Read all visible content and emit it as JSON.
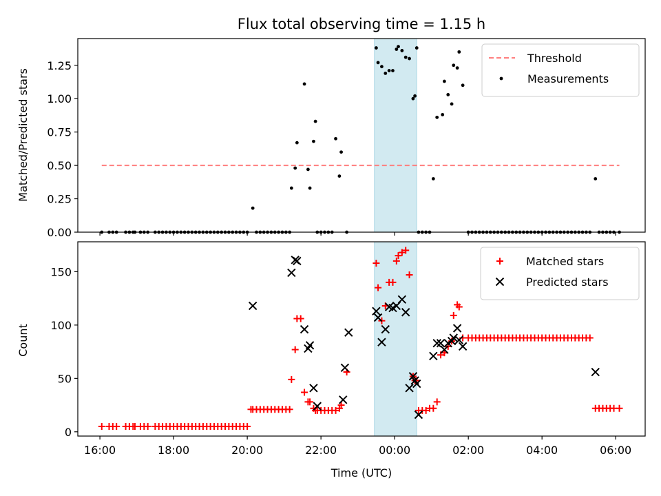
{
  "chart_data": [
    {
      "type": "scatter",
      "title": "Flux total observing time = 1.15 h",
      "xlabel": "",
      "ylabel": "Matched/Predicted stars",
      "xlim": [
        15.4,
        30.8
      ],
      "ylim": [
        0.0,
        1.45
      ],
      "y_ticks": [
        0.0,
        0.25,
        0.5,
        0.75,
        1.0,
        1.25
      ],
      "y_tick_labels": [
        "0.00",
        "0.25",
        "0.50",
        "0.75",
        "1.00",
        "1.25"
      ],
      "x_ticks": [
        16,
        18,
        20,
        22,
        24,
        26,
        28,
        30
      ],
      "shaded_span": {
        "x": [
          23.45,
          24.6
        ],
        "color": "#add8e6"
      },
      "threshold": {
        "name": "Threshold",
        "y": 0.5,
        "x": [
          16.05,
          30.1
        ],
        "color": "#ff7f7f",
        "style": "dashed"
      },
      "legend": {
        "entries": [
          "Threshold",
          "Measurements"
        ],
        "loc": "upper right"
      },
      "series": [
        {
          "name": "Measurements",
          "color": "#000000",
          "x": [
            16.05,
            16.25,
            16.35,
            16.45,
            16.7,
            16.8,
            16.9,
            16.95,
            17.1,
            17.2,
            17.3,
            17.5,
            17.6,
            17.7,
            17.8,
            17.9,
            18.0,
            18.1,
            18.2,
            18.3,
            18.4,
            18.5,
            18.6,
            18.7,
            18.8,
            18.9,
            19.0,
            19.1,
            19.2,
            19.3,
            19.4,
            19.5,
            19.6,
            19.7,
            19.8,
            19.9,
            20.0,
            20.15,
            20.25,
            20.35,
            20.45,
            20.55,
            20.65,
            20.75,
            20.85,
            20.95,
            21.05,
            21.15,
            21.2,
            21.3,
            21.35,
            21.55,
            21.65,
            21.7,
            21.8,
            21.85,
            21.9,
            22.0,
            22.1,
            22.2,
            22.3,
            22.4,
            22.5,
            22.55,
            22.7,
            23.5,
            23.55,
            23.65,
            23.75,
            23.85,
            23.95,
            24.05,
            24.1,
            24.2,
            24.3,
            24.4,
            24.5,
            24.55,
            24.6,
            24.65,
            24.75,
            24.85,
            24.95,
            25.05,
            25.15,
            25.3,
            25.35,
            25.45,
            25.55,
            25.6,
            25.7,
            25.75,
            25.85,
            26.0,
            26.1,
            26.2,
            26.3,
            26.4,
            26.5,
            26.6,
            26.7,
            26.8,
            26.9,
            27.0,
            27.1,
            27.2,
            27.3,
            27.4,
            27.5,
            27.6,
            27.7,
            27.8,
            27.9,
            28.0,
            28.1,
            28.2,
            28.3,
            28.4,
            28.5,
            28.6,
            28.7,
            28.8,
            28.9,
            29.0,
            29.1,
            29.2,
            29.3,
            29.45,
            29.55,
            29.65,
            29.75,
            29.85,
            29.95,
            30.1
          ],
          "y": [
            0.0,
            0.0,
            0.0,
            0.0,
            0.0,
            0.0,
            0.0,
            0.0,
            0.0,
            0.0,
            0.0,
            0.0,
            0.0,
            0.0,
            0.0,
            0.0,
            0.0,
            0.0,
            0.0,
            0.0,
            0.0,
            0.0,
            0.0,
            0.0,
            0.0,
            0.0,
            0.0,
            0.0,
            0.0,
            0.0,
            0.0,
            0.0,
            0.0,
            0.0,
            0.0,
            0.0,
            0.0,
            0.18,
            0.0,
            0.0,
            0.0,
            0.0,
            0.0,
            0.0,
            0.0,
            0.0,
            0.0,
            0.0,
            0.33,
            0.48,
            0.67,
            1.11,
            0.47,
            0.33,
            0.68,
            0.83,
            0.0,
            0.0,
            0.0,
            0.0,
            0.0,
            0.7,
            0.42,
            0.6,
            0.0,
            1.38,
            1.27,
            1.24,
            1.19,
            1.21,
            1.21,
            1.37,
            1.39,
            1.36,
            1.31,
            1.3,
            1.0,
            1.02,
            1.38,
            0.0,
            0.0,
            0.0,
            0.0,
            0.4,
            0.86,
            0.88,
            1.13,
            1.03,
            0.96,
            1.25,
            1.23,
            1.35,
            1.1,
            0.0,
            0.0,
            0.0,
            0.0,
            0.0,
            0.0,
            0.0,
            0.0,
            0.0,
            0.0,
            0.0,
            0.0,
            0.0,
            0.0,
            0.0,
            0.0,
            0.0,
            0.0,
            0.0,
            0.0,
            0.0,
            0.0,
            0.0,
            0.0,
            0.0,
            0.0,
            0.0,
            0.0,
            0.0,
            0.0,
            0.0,
            0.0,
            0.0,
            0.0,
            0.4,
            0.0,
            0.0,
            0.0,
            0.0,
            0.0,
            0.0
          ]
        }
      ]
    },
    {
      "type": "scatter",
      "title": "",
      "xlabel": "Time (UTC)",
      "ylabel": "Count",
      "xlim": [
        15.4,
        30.8
      ],
      "ylim": [
        -4,
        178
      ],
      "y_ticks": [
        0,
        50,
        100,
        150
      ],
      "y_tick_labels": [
        "0",
        "50",
        "100",
        "150"
      ],
      "x_ticks": [
        16,
        18,
        20,
        22,
        24,
        26,
        28,
        30
      ],
      "x_tick_labels": [
        "16:00",
        "18:00",
        "20:00",
        "22:00",
        "00:00",
        "02:00",
        "04:00",
        "06:00"
      ],
      "shaded_span": {
        "x": [
          23.45,
          24.6
        ],
        "color": "#add8e6"
      },
      "legend": {
        "entries": [
          "Matched stars",
          "Predicted stars"
        ],
        "loc": "upper right"
      },
      "series": [
        {
          "name": "Matched stars",
          "marker": "+",
          "color": "#ff0000",
          "x": [
            16.05,
            16.25,
            16.35,
            16.45,
            16.7,
            16.8,
            16.9,
            16.95,
            17.1,
            17.2,
            17.3,
            17.5,
            17.6,
            17.7,
            17.8,
            17.9,
            18.0,
            18.1,
            18.2,
            18.3,
            18.4,
            18.5,
            18.6,
            18.7,
            18.8,
            18.9,
            19.0,
            19.1,
            19.2,
            19.3,
            19.4,
            19.5,
            19.6,
            19.7,
            19.8,
            19.9,
            20.0,
            20.1,
            20.15,
            20.25,
            20.35,
            20.45,
            20.55,
            20.65,
            20.75,
            20.85,
            20.95,
            21.05,
            21.15,
            21.2,
            21.3,
            21.35,
            21.45,
            21.55,
            21.65,
            21.7,
            21.8,
            21.85,
            21.9,
            22.0,
            22.1,
            22.2,
            22.3,
            22.4,
            22.5,
            22.55,
            22.7,
            23.5,
            23.55,
            23.65,
            23.75,
            23.85,
            23.95,
            24.05,
            24.1,
            24.2,
            24.3,
            24.4,
            24.5,
            24.55,
            24.6,
            24.65,
            24.75,
            24.85,
            24.95,
            25.05,
            25.15,
            25.25,
            25.35,
            25.45,
            25.55,
            25.6,
            25.7,
            25.75,
            25.85,
            26.0,
            26.1,
            26.2,
            26.3,
            26.4,
            26.5,
            26.6,
            26.7,
            26.8,
            26.9,
            27.0,
            27.1,
            27.2,
            27.3,
            27.4,
            27.5,
            27.6,
            27.7,
            27.8,
            27.9,
            28.0,
            28.1,
            28.2,
            28.3,
            28.4,
            28.5,
            28.6,
            28.7,
            28.8,
            28.9,
            29.0,
            29.1,
            29.2,
            29.3,
            29.45,
            29.55,
            29.65,
            29.75,
            29.85,
            29.95,
            30.1
          ],
          "y": [
            5,
            5,
            5,
            5,
            5,
            5,
            5,
            5,
            5,
            5,
            5,
            5,
            5,
            5,
            5,
            5,
            5,
            5,
            5,
            5,
            5,
            5,
            5,
            5,
            5,
            5,
            5,
            5,
            5,
            5,
            5,
            5,
            5,
            5,
            5,
            5,
            5,
            21,
            21,
            21,
            21,
            21,
            21,
            21,
            21,
            21,
            21,
            21,
            21,
            49,
            77,
            106,
            106,
            37,
            28,
            28,
            22,
            20,
            20,
            20,
            20,
            20,
            20,
            20,
            22,
            25,
            56,
            158,
            135,
            104,
            118,
            140,
            140,
            160,
            165,
            168,
            170,
            147,
            52,
            48,
            48,
            20,
            20,
            20,
            22,
            22,
            28,
            72,
            74,
            80,
            85,
            109,
            119,
            117,
            88,
            88,
            88,
            88,
            88,
            88,
            88,
            88,
            88,
            88,
            88,
            88,
            88,
            88,
            88,
            88,
            88,
            88,
            88,
            88,
            88,
            88,
            88,
            88,
            88,
            88,
            88,
            88,
            88,
            88,
            88,
            88,
            88,
            88,
            88,
            22,
            22,
            22,
            22,
            22,
            22,
            22
          ]
        },
        {
          "name": "Predicted stars",
          "marker": "x",
          "color": "#000000",
          "x": [
            20.15,
            21.2,
            21.3,
            21.35,
            21.55,
            21.65,
            21.7,
            21.8,
            21.9,
            22.6,
            22.65,
            22.75,
            23.5,
            23.55,
            23.65,
            23.75,
            23.85,
            23.95,
            24.05,
            24.2,
            24.3,
            24.4,
            24.5,
            24.55,
            24.6,
            24.65,
            25.05,
            25.15,
            25.25,
            25.35,
            25.45,
            25.55,
            25.6,
            25.7,
            25.75,
            25.85,
            29.45
          ],
          "y": [
            118,
            149,
            161,
            160,
            96,
            78,
            81,
            41,
            24,
            30,
            60,
            93,
            113,
            107,
            84,
            96,
            117,
            116,
            118,
            124,
            112,
            41,
            52,
            48,
            45,
            16,
            71,
            83,
            83,
            77,
            83,
            85,
            88,
            97,
            86,
            80,
            56
          ]
        }
      ]
    }
  ]
}
